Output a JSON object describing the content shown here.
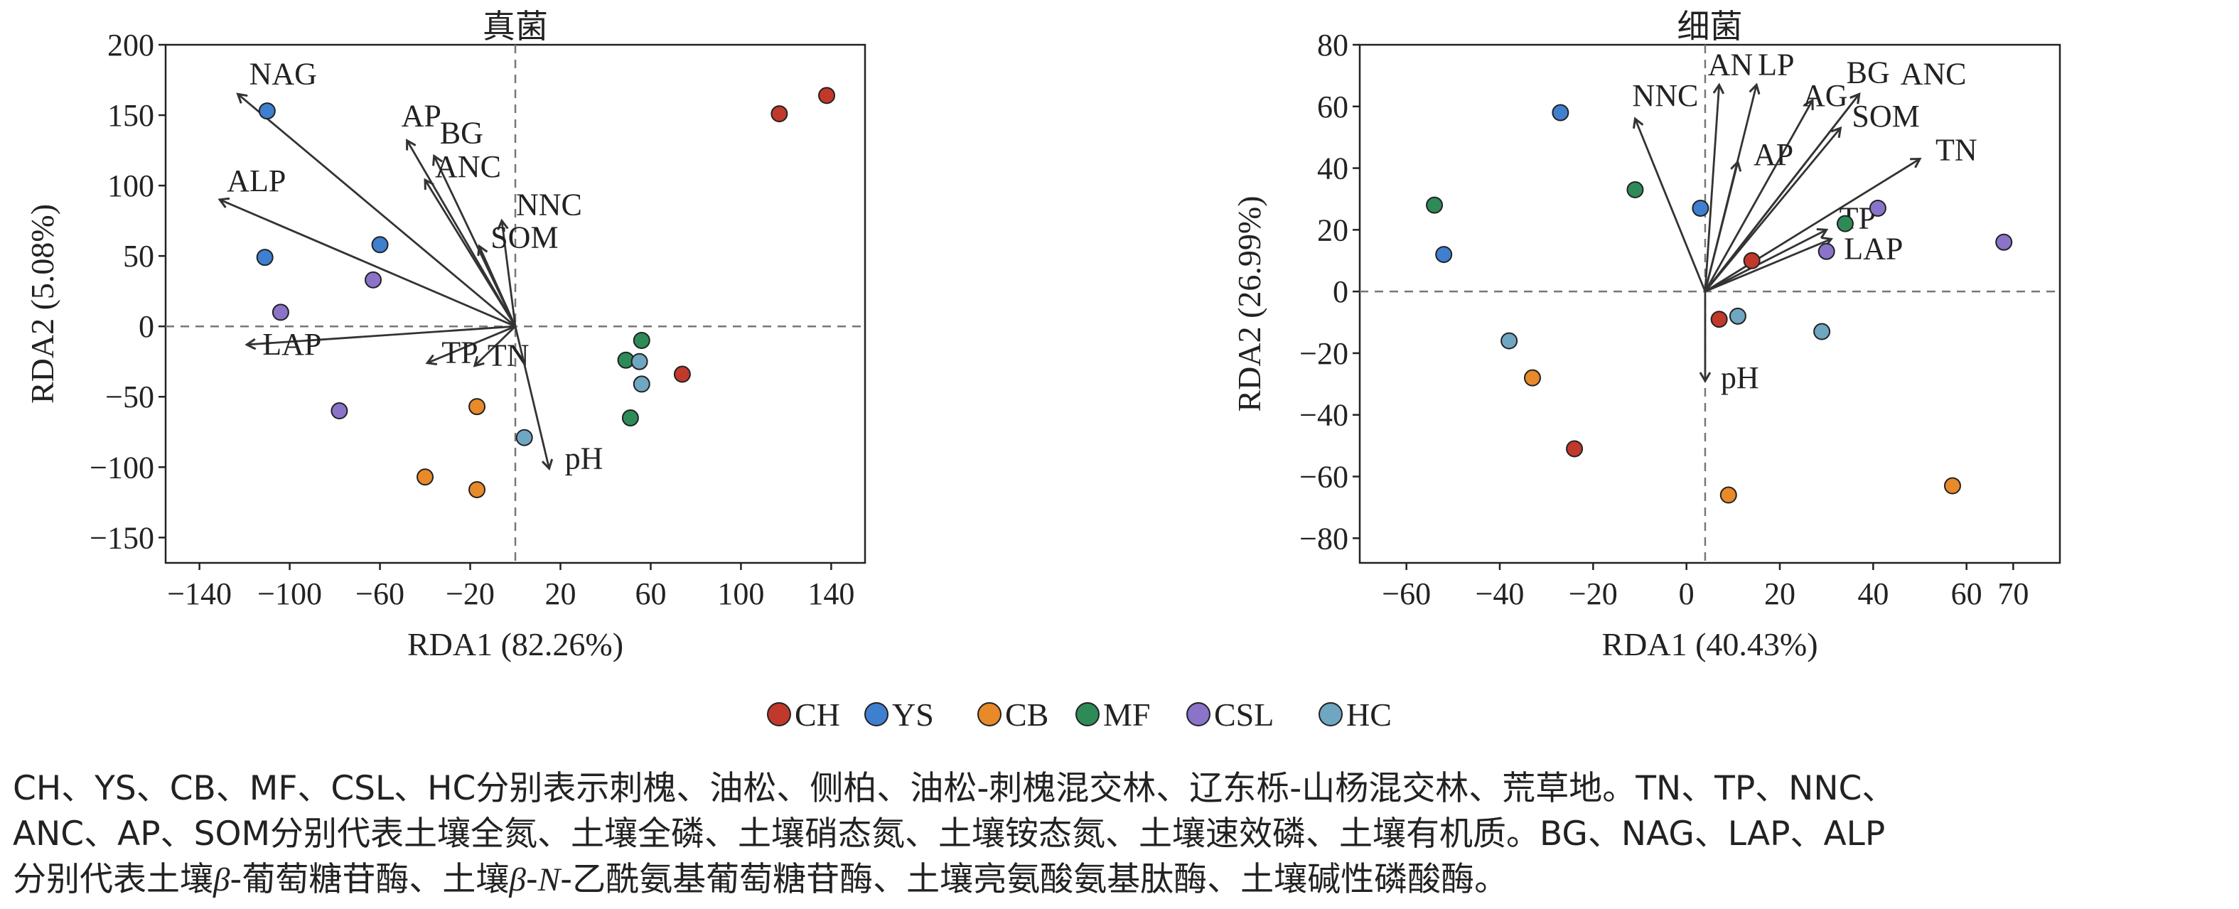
{
  "chart_data": [
    {
      "type": "scatter",
      "title": "真菌",
      "xlabel": "RDA1 (82.26%)",
      "ylabel": "RDA2 (5.08%)",
      "xlim": [
        -155,
        155
      ],
      "ylim": [
        -168,
        200
      ],
      "xticks": [
        -140,
        -100,
        -60,
        -20,
        20,
        60,
        100,
        140
      ],
      "yticks": [
        -150,
        -100,
        -50,
        0,
        50,
        100,
        150,
        200
      ],
      "xtick_labels": [
        "−140",
        "−100",
        "−60",
        "−20",
        "20",
        "60",
        "100",
        "140"
      ],
      "ytick_labels": [
        "−150",
        "−100",
        "−50",
        "0",
        "50",
        "100",
        "150",
        "200"
      ],
      "ref_lines": {
        "x": 0,
        "y": 0
      },
      "arrows": [
        {
          "label": "NAG",
          "x": -123,
          "y": 165
        },
        {
          "label": "AP",
          "x": -48,
          "y": 132
        },
        {
          "label": "BG",
          "x": -36,
          "y": 121
        },
        {
          "label": "ANC",
          "x": -40,
          "y": 104
        },
        {
          "label": "ALP",
          "x": -131,
          "y": 90
        },
        {
          "label": "NNC",
          "x": -6,
          "y": 75
        },
        {
          "label": "SOM",
          "x": -16,
          "y": 57
        },
        {
          "label": "LAP",
          "x": -119,
          "y": -13
        },
        {
          "label": "TP",
          "x": -39,
          "y": -26
        },
        {
          "label": "TN",
          "x": -18,
          "y": -28
        },
        {
          "label": "pH",
          "x": 15,
          "y": -101
        }
      ],
      "points": [
        {
          "group": "YS",
          "x": -110,
          "y": 153
        },
        {
          "group": "YS",
          "x": -111,
          "y": 49
        },
        {
          "group": "YS",
          "x": -60,
          "y": 58
        },
        {
          "group": "CSL",
          "x": -104,
          "y": 10
        },
        {
          "group": "CSL",
          "x": -63,
          "y": 33
        },
        {
          "group": "CSL",
          "x": -78,
          "y": -60
        },
        {
          "group": "CH",
          "x": 117,
          "y": 151
        },
        {
          "group": "CH",
          "x": 138,
          "y": 164
        },
        {
          "group": "CH",
          "x": 74,
          "y": -34
        },
        {
          "group": "CB",
          "x": -17,
          "y": -57
        },
        {
          "group": "CB",
          "x": -40,
          "y": -107
        },
        {
          "group": "CB",
          "x": -17,
          "y": -116
        },
        {
          "group": "MF",
          "x": 56,
          "y": -10
        },
        {
          "group": "MF",
          "x": 49,
          "y": -24
        },
        {
          "group": "MF",
          "x": 51,
          "y": -65
        },
        {
          "group": "HC",
          "x": 55,
          "y": -25
        },
        {
          "group": "HC",
          "x": 56,
          "y": -41
        },
        {
          "group": "HC",
          "x": 4,
          "y": -79
        }
      ]
    },
    {
      "type": "scatter",
      "title": "细菌",
      "xlabel": "RDA1 (40.43%)",
      "ylabel": "RDA2 (26.99%)",
      "xlim": [
        -70,
        80
      ],
      "ylim": [
        -88,
        80
      ],
      "xticks": [
        -60,
        -40,
        -20,
        0,
        20,
        40,
        60,
        70
      ],
      "yticks": [
        -80,
        -60,
        -40,
        -20,
        0,
        20,
        40,
        60,
        80
      ],
      "xtick_labels": [
        "−60",
        "−40",
        "−20",
        "0",
        "20",
        "40",
        "60",
        "70"
      ],
      "ytick_labels": [
        "−80",
        "−60",
        "−40",
        "−20",
        "0",
        "20",
        "40",
        "60",
        "80"
      ],
      "ref_lines": {
        "x": 4,
        "y": 0
      },
      "arrows": [
        {
          "label": "AN",
          "x": 7,
          "y": 67
        },
        {
          "label": "LP",
          "x": 15,
          "y": 67
        },
        {
          "label": "AG",
          "x": 27,
          "y": 62
        },
        {
          "label": "BG",
          "x": 37,
          "y": 64
        },
        {
          "label": "ANC",
          "x": 37,
          "y": 64
        },
        {
          "label": "SOM",
          "x": 33,
          "y": 53
        },
        {
          "label": "NNC",
          "x": -11,
          "y": 56
        },
        {
          "label": "AP",
          "x": 11,
          "y": 42
        },
        {
          "label": "TN",
          "x": 50,
          "y": 43
        },
        {
          "label": "TP",
          "x": 30,
          "y": 20
        },
        {
          "label": "LAP",
          "x": 31,
          "y": 17
        },
        {
          "label": "pH",
          "x": 4,
          "y": -29
        }
      ],
      "points": [
        {
          "group": "YS",
          "x": -27,
          "y": 58
        },
        {
          "group": "YS",
          "x": 3,
          "y": 27
        },
        {
          "group": "YS",
          "x": -52,
          "y": 12
        },
        {
          "group": "MF",
          "x": -54,
          "y": 28
        },
        {
          "group": "MF",
          "x": -11,
          "y": 33
        },
        {
          "group": "MF",
          "x": 34,
          "y": 22
        },
        {
          "group": "CSL",
          "x": 41,
          "y": 27
        },
        {
          "group": "CSL",
          "x": 30,
          "y": 13
        },
        {
          "group": "CSL",
          "x": 68,
          "y": 16
        },
        {
          "group": "CH",
          "x": 14,
          "y": 10
        },
        {
          "group": "CH",
          "x": 7,
          "y": -9
        },
        {
          "group": "CH",
          "x": -24,
          "y": -51
        },
        {
          "group": "HC",
          "x": 11,
          "y": -8
        },
        {
          "group": "HC",
          "x": -38,
          "y": -16
        },
        {
          "group": "HC",
          "x": 29,
          "y": -13
        },
        {
          "group": "CB",
          "x": -33,
          "y": -28
        },
        {
          "group": "CB",
          "x": 9,
          "y": -66
        },
        {
          "group": "CB",
          "x": 57,
          "y": -63
        }
      ]
    }
  ],
  "legend": [
    {
      "label": "CH",
      "color": "#c0392b"
    },
    {
      "label": "YS",
      "color": "#3f7fcf"
    },
    {
      "label": "CB",
      "color": "#e8892a"
    },
    {
      "label": "MF",
      "color": "#2e8b57"
    },
    {
      "label": "CSL",
      "color": "#8a73c9"
    },
    {
      "label": "HC",
      "color": "#6fa6c2"
    }
  ],
  "caption": {
    "line1": "CH、YS、CB、MF、CSL、HC分别表示刺槐、油松、侧柏、油松-刺槐混交林、辽东栎-山杨混交林、荒草地。TN、TP、NNC、",
    "line2": "ANC、AP、SOM分别代表土壤全氮、土壤全磷、土壤硝态氮、土壤铵态氮、土壤速效磷、土壤有机质。BG、NAG、LAP、ALP",
    "line3_a": "分别代表土壤",
    "line3_b": "β",
    "line3_c": "-葡萄糖苷酶、土壤",
    "line3_d": "β",
    "line3_e": "-",
    "line3_f": "N",
    "line3_g": "-乙酰氨基葡萄糖苷酶、土壤亮氨酸氨基肽酶、土壤碱性磷酸酶。"
  }
}
